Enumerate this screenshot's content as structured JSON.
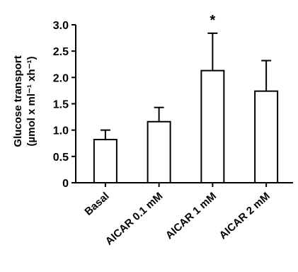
{
  "chart_data": {
    "type": "bar",
    "categories": [
      "Basal",
      "AICAR 0.1 mM",
      "AICAR 1 mM",
      "AICAR 2 mM"
    ],
    "values": [
      0.82,
      1.16,
      2.13,
      1.74
    ],
    "errors": [
      0.18,
      0.27,
      0.71,
      0.58
    ],
    "annotations": [
      "",
      "",
      "*",
      ""
    ],
    "ylabel_line1": "Glucose transport",
    "ylabel_line2": "(µmol x ml⁻¹ xh⁻¹)",
    "ylim": [
      0,
      3.0
    ],
    "yticks": [
      "0",
      "0.5",
      "1.0",
      "1.5",
      "2.0",
      "2.5",
      "3.0"
    ],
    "ytick_values": [
      0,
      0.5,
      1.0,
      1.5,
      2.0,
      2.5,
      3.0
    ],
    "grid": false,
    "colors": {
      "bar_fill": "#ffffff",
      "stroke": "#000000"
    }
  }
}
